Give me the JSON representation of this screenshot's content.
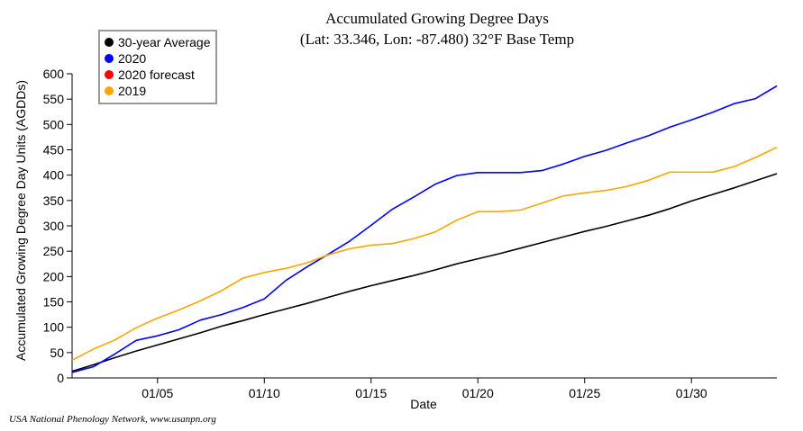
{
  "chart_data": {
    "type": "line",
    "title": "Accumulated Growing Degree Days",
    "subtitle": "(Lat: 33.346, Lon: -87.480) 32°F Base Temp",
    "xlabel": "Date",
    "ylabel": "Accumulated Growing Degree Day Units (AGDDs)",
    "xlim": [
      1,
      34
    ],
    "ylim": [
      0,
      600
    ],
    "x_ticks": [
      {
        "day": 5,
        "label": "01/05"
      },
      {
        "day": 10,
        "label": "01/10"
      },
      {
        "day": 15,
        "label": "01/15"
      },
      {
        "day": 20,
        "label": "01/20"
      },
      {
        "day": 25,
        "label": "01/25"
      },
      {
        "day": 30,
        "label": "01/30"
      }
    ],
    "y_ticks": [
      0,
      50,
      100,
      150,
      200,
      250,
      300,
      350,
      400,
      450,
      500,
      550,
      600
    ],
    "legend": [
      {
        "name": "30-year Average",
        "color": "#000000"
      },
      {
        "name": "2020",
        "color": "#0000ff"
      },
      {
        "name": "2020 forecast",
        "color": "#ff0000"
      },
      {
        "name": "2019",
        "color": "#ffa500"
      }
    ],
    "series": [
      {
        "name": "30-year Average",
        "color": "#000000",
        "x": [
          1,
          2,
          3,
          4,
          5,
          6,
          7,
          8,
          9,
          10,
          11,
          12,
          13,
          14,
          15,
          16,
          17,
          18,
          19,
          20,
          21,
          22,
          23,
          24,
          25,
          26,
          27,
          28,
          29,
          30,
          31,
          32,
          33,
          34
        ],
        "values": [
          13,
          26,
          40,
          53,
          65,
          77,
          89,
          102,
          113,
          125,
          136,
          147,
          159,
          171,
          182,
          192,
          202,
          213,
          225,
          235,
          245,
          256,
          267,
          278,
          289,
          299,
          310,
          321,
          334,
          349,
          362,
          375,
          389,
          403
        ]
      },
      {
        "name": "2020",
        "color": "#0000ff",
        "x": [
          1,
          2,
          3,
          4,
          5,
          6,
          7,
          8,
          9,
          10,
          11,
          12,
          13,
          14,
          15,
          16,
          17,
          18,
          19,
          20,
          21,
          22,
          23,
          24,
          25,
          26,
          27,
          28,
          29,
          30,
          31,
          32,
          33,
          34
        ],
        "values": [
          11,
          22,
          47,
          74,
          83,
          95,
          114,
          125,
          139,
          156,
          192,
          219,
          244,
          270,
          301,
          333,
          357,
          382,
          399,
          405,
          405,
          405,
          409,
          422,
          437,
          449,
          464,
          478,
          495,
          509,
          524,
          541,
          551,
          576
        ]
      },
      {
        "name": "2019",
        "color": "#ffa500",
        "x": [
          1,
          2,
          3,
          4,
          5,
          6,
          7,
          8,
          9,
          10,
          11,
          12,
          13,
          14,
          15,
          16,
          17,
          18,
          19,
          20,
          21,
          22,
          23,
          24,
          25,
          26,
          27,
          28,
          29,
          30,
          31,
          32,
          33,
          34
        ],
        "values": [
          35,
          57,
          75,
          99,
          118,
          134,
          152,
          172,
          197,
          208,
          216,
          227,
          243,
          255,
          262,
          265,
          275,
          288,
          311,
          328,
          328,
          331,
          345,
          359,
          365,
          370,
          378,
          390,
          406,
          406,
          406,
          417,
          435,
          455
        ]
      }
    ]
  },
  "credit": "USA National Phenology Network, www.usanpn.org"
}
